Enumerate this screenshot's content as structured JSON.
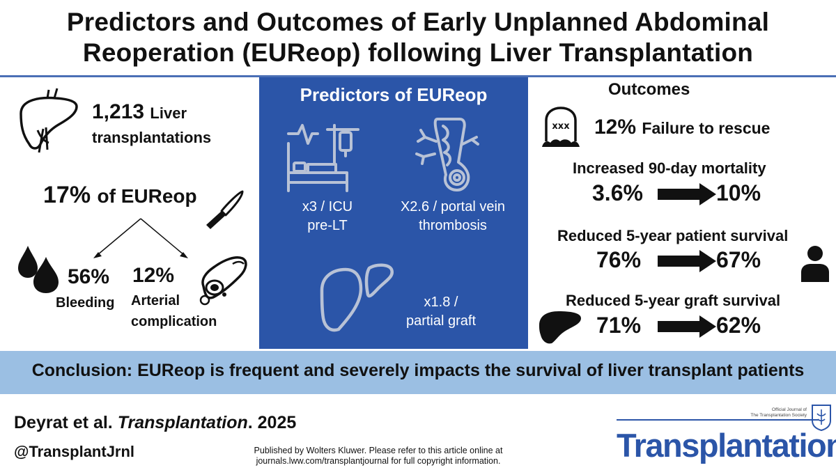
{
  "title": {
    "line1": "Predictors and Outcomes of Early Unplanned Abdominal",
    "line2": "Reoperation (EUReop) following Liver Transplantation"
  },
  "left": {
    "count": "1,213",
    "count_unit": "Liver",
    "count_label": "transplantations",
    "eureop_pct": "17%",
    "eureop_label": "of EUReop",
    "bleeding_pct": "56%",
    "bleeding_label": "Bleeding",
    "arterial_pct": "12%",
    "arterial_label_1": "Arterial",
    "arterial_label_2": "complication"
  },
  "predictors": {
    "title": "Predictors of EUReop",
    "icu_1": "x3 / ICU",
    "icu_2": "pre-LT",
    "pvt_1": "X2.6 / portal vein",
    "pvt_2": "thrombosis",
    "graft_1": "x1.8 /",
    "graft_2": "partial graft"
  },
  "outcomes": {
    "title": "Outcomes",
    "ftr_pct": "12%",
    "ftr_label": "Failure to rescue",
    "mortality_head": "Increased 90-day mortality",
    "mortality_from": "3.6%",
    "mortality_to": "10%",
    "patient_head": "Reduced 5-year patient survival",
    "patient_from": "76%",
    "patient_to": "67%",
    "graft_head": "Reduced 5-year graft survival",
    "graft_from": "71%",
    "graft_to": "62%"
  },
  "conclusion": "Conclusion: EUReop is frequent and severely impacts the survival of liver transplant patients",
  "footer": {
    "authors": "Deyrat et al.",
    "journal_italic": "Transplantation",
    "year": ". 2025",
    "handle": "@TransplantJrnl",
    "published_1": "Published by Wolters Kluwer. Please refer to this article online at",
    "published_2": "journals.lww.com/transplantjournal for full copyright information.",
    "journal_small_1": "Official Journal of",
    "journal_small_2": "The Transplantation Society",
    "journal_name": "Transplantation"
  },
  "colors": {
    "brand_blue": "#2b55a8",
    "band_blue": "#9bbfe3",
    "rule_blue": "#4a6fb5"
  },
  "icons": [
    "liver-icon",
    "scalpel-icon",
    "blood-drops-icon",
    "artery-icon",
    "icu-bed-icon",
    "portal-vein-icon",
    "partial-liver-icon",
    "tombstone-icon",
    "arrow-right-icon",
    "person-icon",
    "liver-dark-icon"
  ]
}
